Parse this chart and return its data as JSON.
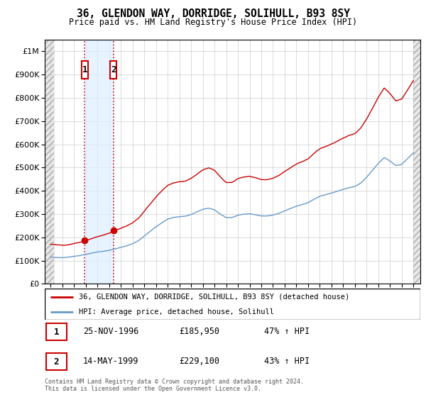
{
  "title": "36, GLENDON WAY, DORRIDGE, SOLIHULL, B93 8SY",
  "subtitle": "Price paid vs. HM Land Registry's House Price Index (HPI)",
  "sale1_price": 185950,
  "sale1_label": "25-NOV-1996",
  "sale1_pct": "47% ↑ HPI",
  "sale2_price": 229100,
  "sale2_label": "14-MAY-1999",
  "sale2_pct": "43% ↑ HPI",
  "legend_line1": "36, GLENDON WAY, DORRIDGE, SOLIHULL, B93 8SY (detached house)",
  "legend_line2": "HPI: Average price, detached house, Solihull",
  "footer": "Contains HM Land Registry data © Crown copyright and database right 2024.\nThis data is licensed under the Open Government Licence v3.0.",
  "hpi_color": "#6699cc",
  "price_color": "#cc0000",
  "ylim_max": 1000000,
  "sale1_year": 1996.917,
  "sale2_year": 1999.375
}
